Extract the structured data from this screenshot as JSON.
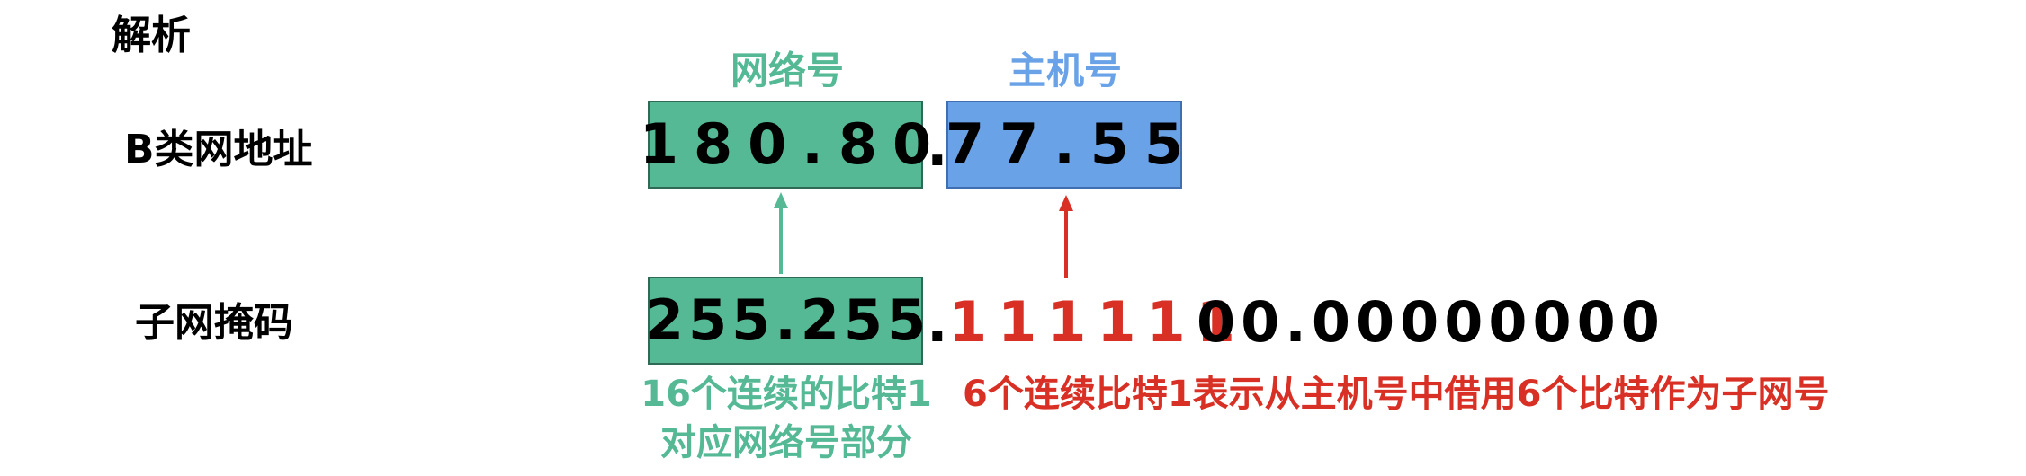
{
  "title": "解析",
  "labels": {
    "class_b_address": "B类网地址",
    "subnet_mask": "子网掩码",
    "network_part": "网络号",
    "host_part": "主机号"
  },
  "address": {
    "network": "180.80",
    "separator": ".",
    "host": "77.55"
  },
  "mask": {
    "network": "255.255",
    "separator": ".",
    "borrowed": "111111",
    "rest": "00.00000000"
  },
  "notes": {
    "network_note_line1": "16个连续的比特1",
    "network_note_line2": "对应网络号部分",
    "subnet_note": "6个连续比特1表示从主机号中借用6个比特作为子网号"
  },
  "colors": {
    "network_green": "#55b996",
    "host_blue": "#6aa2e8",
    "borrowed_red": "#d93025"
  }
}
